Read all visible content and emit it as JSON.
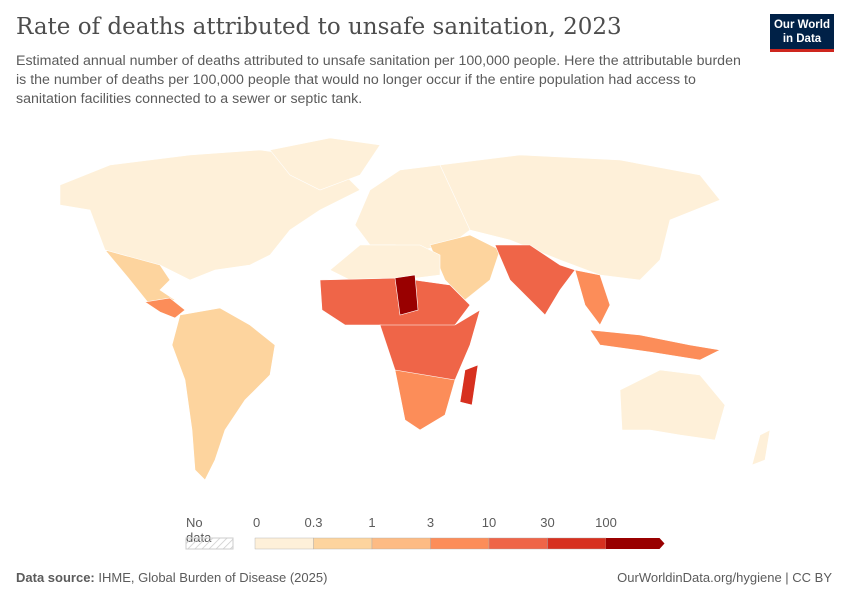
{
  "title": "Rate of deaths attributed to unsafe sanitation, 2023",
  "subtitle": "Estimated annual number of deaths attributed to unsafe sanitation per 100,000 people. Here the attributable burden is the number of deaths per 100,000 people that would no longer occur if the entire population had access to sanitation facilities connected to a sewer or septic tank.",
  "logo": {
    "line1": "Our World",
    "line2": "in Data"
  },
  "legend": {
    "no_data": "No data",
    "ticks": [
      "0",
      "0.3",
      "1",
      "3",
      "10",
      "30",
      "100"
    ],
    "colors": [
      "#fef0d9",
      "#fdd49e",
      "#fdbb84",
      "#fc8d59",
      "#ef6548",
      "#d7301f",
      "#990000"
    ],
    "no_data_color": "#e8e8e8"
  },
  "footer": {
    "source_label": "Data source:",
    "source": "IHME, Global Burden of Disease (2025)",
    "link": "OurWorldinData.org/hygiene | CC BY"
  },
  "chart_data": {
    "type": "choropleth",
    "year": 2023,
    "scale": "binned",
    "bins": [
      0,
      0.3,
      1,
      3,
      10,
      30,
      100
    ]
  }
}
